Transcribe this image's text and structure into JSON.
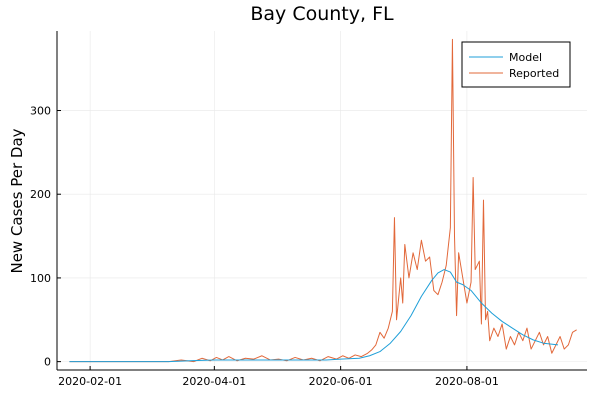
{
  "chart_data": {
    "type": "line",
    "title": "Bay County, FL",
    "xlabel": "",
    "ylabel": "New Cases Per Day",
    "x_axis": "date",
    "xlim": [
      "2020-01-16",
      "2020-09-28"
    ],
    "ylim": [
      -10,
      395
    ],
    "grid": true,
    "legend_position": "top-right",
    "x_ticks": [
      "2020-02-01",
      "2020-04-01",
      "2020-06-01",
      "2020-08-01"
    ],
    "y_ticks": [
      0,
      100,
      200,
      300
    ],
    "series": [
      {
        "name": "Model",
        "color": "#1f9fd8",
        "x": [
          "2020-01-22",
          "2020-03-10",
          "2020-03-20",
          "2020-04-01",
          "2020-04-15",
          "2020-05-01",
          "2020-05-15",
          "2020-05-25",
          "2020-06-01",
          "2020-06-10",
          "2020-06-15",
          "2020-06-20",
          "2020-06-25",
          "2020-06-30",
          "2020-07-05",
          "2020-07-10",
          "2020-07-15",
          "2020-07-18",
          "2020-07-21",
          "2020-07-24",
          "2020-07-27",
          "2020-07-30",
          "2020-08-03",
          "2020-08-08",
          "2020-08-13",
          "2020-08-18",
          "2020-08-23",
          "2020-08-28",
          "2020-09-02",
          "2020-09-07",
          "2020-09-14"
        ],
        "y": [
          0,
          0,
          1,
          2,
          2,
          2,
          2,
          2,
          3,
          4,
          7,
          12,
          22,
          36,
          55,
          78,
          97,
          106,
          110,
          107,
          95,
          92,
          85,
          70,
          58,
          48,
          40,
          32,
          26,
          22,
          20
        ]
      },
      {
        "name": "Reported",
        "color": "#e2683a",
        "x": [
          "2020-01-22",
          "2020-03-10",
          "2020-03-16",
          "2020-03-22",
          "2020-03-26",
          "2020-03-30",
          "2020-04-02",
          "2020-04-05",
          "2020-04-08",
          "2020-04-12",
          "2020-04-16",
          "2020-04-20",
          "2020-04-24",
          "2020-04-28",
          "2020-05-02",
          "2020-05-06",
          "2020-05-10",
          "2020-05-14",
          "2020-05-18",
          "2020-05-22",
          "2020-05-26",
          "2020-05-30",
          "2020-06-02",
          "2020-06-05",
          "2020-06-08",
          "2020-06-11",
          "2020-06-14",
          "2020-06-16",
          "2020-06-18",
          "2020-06-20",
          "2020-06-22",
          "2020-06-24",
          "2020-06-26",
          "2020-06-27",
          "2020-06-28",
          "2020-06-29",
          "2020-06-30",
          "2020-07-01",
          "2020-07-02",
          "2020-07-04",
          "2020-07-06",
          "2020-07-08",
          "2020-07-10",
          "2020-07-12",
          "2020-07-14",
          "2020-07-16",
          "2020-07-18",
          "2020-07-20",
          "2020-07-22",
          "2020-07-24",
          "2020-07-25",
          "2020-07-26",
          "2020-07-27",
          "2020-07-28",
          "2020-07-30",
          "2020-08-01",
          "2020-08-03",
          "2020-08-04",
          "2020-08-05",
          "2020-08-07",
          "2020-08-08",
          "2020-08-09",
          "2020-08-10",
          "2020-08-11",
          "2020-08-12",
          "2020-08-14",
          "2020-08-16",
          "2020-08-18",
          "2020-08-20",
          "2020-08-22",
          "2020-08-24",
          "2020-08-26",
          "2020-08-28",
          "2020-08-30",
          "2020-09-01",
          "2020-09-03",
          "2020-09-05",
          "2020-09-07",
          "2020-09-09",
          "2020-09-11",
          "2020-09-13",
          "2020-09-15",
          "2020-09-17",
          "2020-09-19",
          "2020-09-21",
          "2020-09-23"
        ],
        "y": [
          0,
          0,
          2,
          0,
          4,
          1,
          5,
          2,
          6,
          1,
          4,
          3,
          7,
          2,
          3,
          1,
          5,
          2,
          4,
          1,
          6,
          3,
          7,
          4,
          8,
          6,
          10,
          14,
          20,
          35,
          28,
          40,
          60,
          172,
          50,
          75,
          100,
          70,
          140,
          100,
          130,
          110,
          145,
          120,
          125,
          85,
          80,
          95,
          115,
          160,
          385,
          150,
          55,
          130,
          100,
          70,
          95,
          220,
          110,
          120,
          45,
          193,
          50,
          60,
          25,
          40,
          30,
          45,
          15,
          30,
          20,
          35,
          25,
          40,
          15,
          25,
          35,
          20,
          30,
          10,
          20,
          30,
          15,
          20,
          35,
          38
        ]
      }
    ]
  }
}
